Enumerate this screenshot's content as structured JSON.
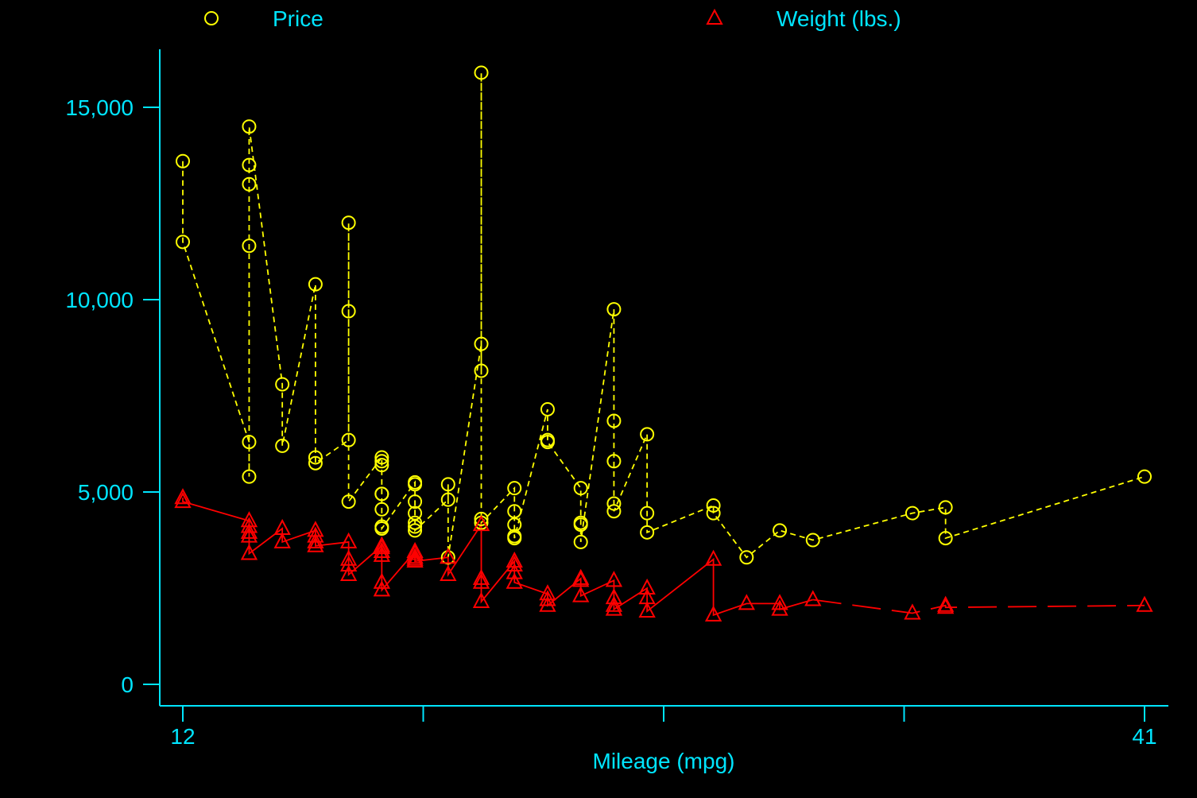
{
  "colors": {
    "background": "#000000",
    "axis": "#00e5ff",
    "price": "#ffff00",
    "weight": "#ff0000"
  },
  "chart_data": {
    "type": "line",
    "xlabel": "Mileage (mpg)",
    "ylabel": "",
    "xlim": [
      12,
      41
    ],
    "ylim": [
      0,
      16000
    ],
    "x_ticks": [
      12,
      19.25,
      26.5,
      33.75,
      41
    ],
    "x_tick_labels": [
      "12",
      "",
      "",
      "",
      "41"
    ],
    "y_ticks": [
      0,
      5000,
      10000,
      15000
    ],
    "y_tick_labels": [
      "0",
      "5,000",
      "10,000",
      "15,000"
    ],
    "grid": false,
    "legend_position": "top",
    "series": [
      {
        "name": "Price",
        "marker": "circle",
        "line_style": "short-dash",
        "points": [
          [
            12,
            13600
          ],
          [
            12,
            11500
          ],
          [
            14,
            6300
          ],
          [
            14,
            5400
          ],
          [
            14,
            11400
          ],
          [
            14,
            13000
          ],
          [
            14,
            13500
          ],
          [
            14,
            14500
          ],
          [
            15,
            7800
          ],
          [
            15,
            6200
          ],
          [
            16,
            10400
          ],
          [
            16,
            5900
          ],
          [
            16,
            5750
          ],
          [
            17,
            6350
          ],
          [
            17,
            12000
          ],
          [
            17,
            9700
          ],
          [
            17,
            4750
          ],
          [
            18,
            5900
          ],
          [
            18,
            5800
          ],
          [
            18,
            5700
          ],
          [
            18,
            4950
          ],
          [
            18,
            4950
          ],
          [
            18,
            4550
          ],
          [
            18,
            4100
          ],
          [
            18,
            4050
          ],
          [
            19,
            5250
          ],
          [
            19,
            5200
          ],
          [
            19,
            4750
          ],
          [
            19,
            4450
          ],
          [
            19,
            4200
          ],
          [
            19,
            4100
          ],
          [
            19,
            4000
          ],
          [
            20,
            4800
          ],
          [
            20,
            5200
          ],
          [
            20,
            3300
          ],
          [
            21,
            8850
          ],
          [
            21,
            8150
          ],
          [
            21,
            15900
          ],
          [
            21,
            4300
          ],
          [
            21,
            4200
          ],
          [
            22,
            5100
          ],
          [
            22,
            4500
          ],
          [
            22,
            4150
          ],
          [
            22,
            3850
          ],
          [
            22,
            3800
          ],
          [
            23,
            7150
          ],
          [
            23,
            6350
          ],
          [
            23,
            6300
          ],
          [
            24,
            5100
          ],
          [
            24,
            4200
          ],
          [
            24,
            4150
          ],
          [
            24,
            3700
          ],
          [
            25,
            9750
          ],
          [
            25,
            6850
          ],
          [
            25,
            5800
          ],
          [
            25,
            4700
          ],
          [
            25,
            4500
          ],
          [
            26,
            6500
          ],
          [
            26,
            4450
          ],
          [
            26,
            3950
          ],
          [
            28,
            4650
          ],
          [
            28,
            4450
          ],
          [
            29,
            3300
          ],
          [
            30,
            4000
          ],
          [
            31,
            3750
          ],
          [
            34,
            4450
          ],
          [
            35,
            4600
          ],
          [
            35,
            3800
          ],
          [
            41,
            5400
          ]
        ]
      },
      {
        "name": "Weight (lbs.)",
        "marker": "triangle",
        "line_style": "solid-then-long-dash",
        "points": [
          [
            12,
            4850
          ],
          [
            12,
            4750
          ],
          [
            14,
            4250
          ],
          [
            14,
            4100
          ],
          [
            14,
            3950
          ],
          [
            14,
            3850
          ],
          [
            14,
            3400
          ],
          [
            15,
            4050
          ],
          [
            15,
            3700
          ],
          [
            16,
            4000
          ],
          [
            16,
            3850
          ],
          [
            16,
            3700
          ],
          [
            16,
            3600
          ],
          [
            17,
            3700
          ],
          [
            17,
            3250
          ],
          [
            17,
            3100
          ],
          [
            17,
            2850
          ],
          [
            18,
            3600
          ],
          [
            18,
            3550
          ],
          [
            18,
            3450
          ],
          [
            18,
            3350
          ],
          [
            18,
            2650
          ],
          [
            18,
            2450
          ],
          [
            19,
            3450
          ],
          [
            19,
            3400
          ],
          [
            19,
            3300
          ],
          [
            19,
            3250
          ],
          [
            19,
            3200
          ],
          [
            20,
            3300
          ],
          [
            20,
            2850
          ],
          [
            21,
            4150
          ],
          [
            21,
            2750
          ],
          [
            21,
            2650
          ],
          [
            21,
            2150
          ],
          [
            22,
            3200
          ],
          [
            22,
            3100
          ],
          [
            22,
            2900
          ],
          [
            22,
            2650
          ],
          [
            23,
            2350
          ],
          [
            23,
            2200
          ],
          [
            23,
            2050
          ],
          [
            24,
            2750
          ],
          [
            24,
            2700
          ],
          [
            24,
            2300
          ],
          [
            25,
            2700
          ],
          [
            25,
            2250
          ],
          [
            25,
            2050
          ],
          [
            25,
            1950
          ],
          [
            26,
            2500
          ],
          [
            26,
            2250
          ],
          [
            26,
            1900
          ],
          [
            28,
            3250
          ],
          [
            28,
            1800
          ],
          [
            29,
            2100
          ],
          [
            30,
            2100
          ],
          [
            30,
            1950
          ],
          [
            31,
            2200
          ],
          [
            34,
            1850
          ],
          [
            35,
            2050
          ],
          [
            35,
            2000
          ],
          [
            41,
            2050
          ]
        ]
      }
    ]
  }
}
